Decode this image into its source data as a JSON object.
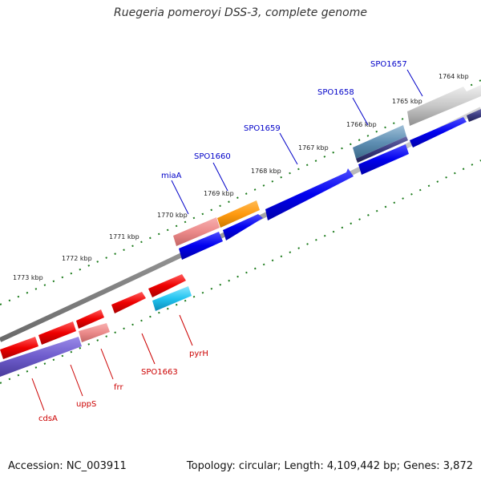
{
  "title": "Ruegeria pomeroyi DSS-3, complete genome",
  "accession": "Accession: NC_003911",
  "summary": "Topology: circular; Length: 4,109,442 bp; Genes: 3,872",
  "colors": {
    "backbone": "#8a8a8a",
    "tick": "#1a7a1a",
    "label_blue": "#0000c8",
    "label_red": "#cc0000"
  },
  "ticks": [
    "1764 kbp",
    "1765 kbp",
    "1766 kbp",
    "1767 kbp",
    "1768 kbp",
    "1769 kbp",
    "1770 kbp",
    "1771 kbp",
    "1772 kbp",
    "1773 kbp"
  ],
  "gene_labels": [
    {
      "name": "SPO1657",
      "color": "blue"
    },
    {
      "name": "SPO1658",
      "color": "blue"
    },
    {
      "name": "SPO1659",
      "color": "blue"
    },
    {
      "name": "SPO1660",
      "color": "blue"
    },
    {
      "name": "miaA",
      "color": "blue"
    },
    {
      "name": "cdsA",
      "color": "red"
    },
    {
      "name": "uppS",
      "color": "red"
    },
    {
      "name": "frr",
      "color": "red"
    },
    {
      "name": "SPO1663",
      "color": "red"
    },
    {
      "name": "pyrH",
      "color": "red"
    }
  ]
}
